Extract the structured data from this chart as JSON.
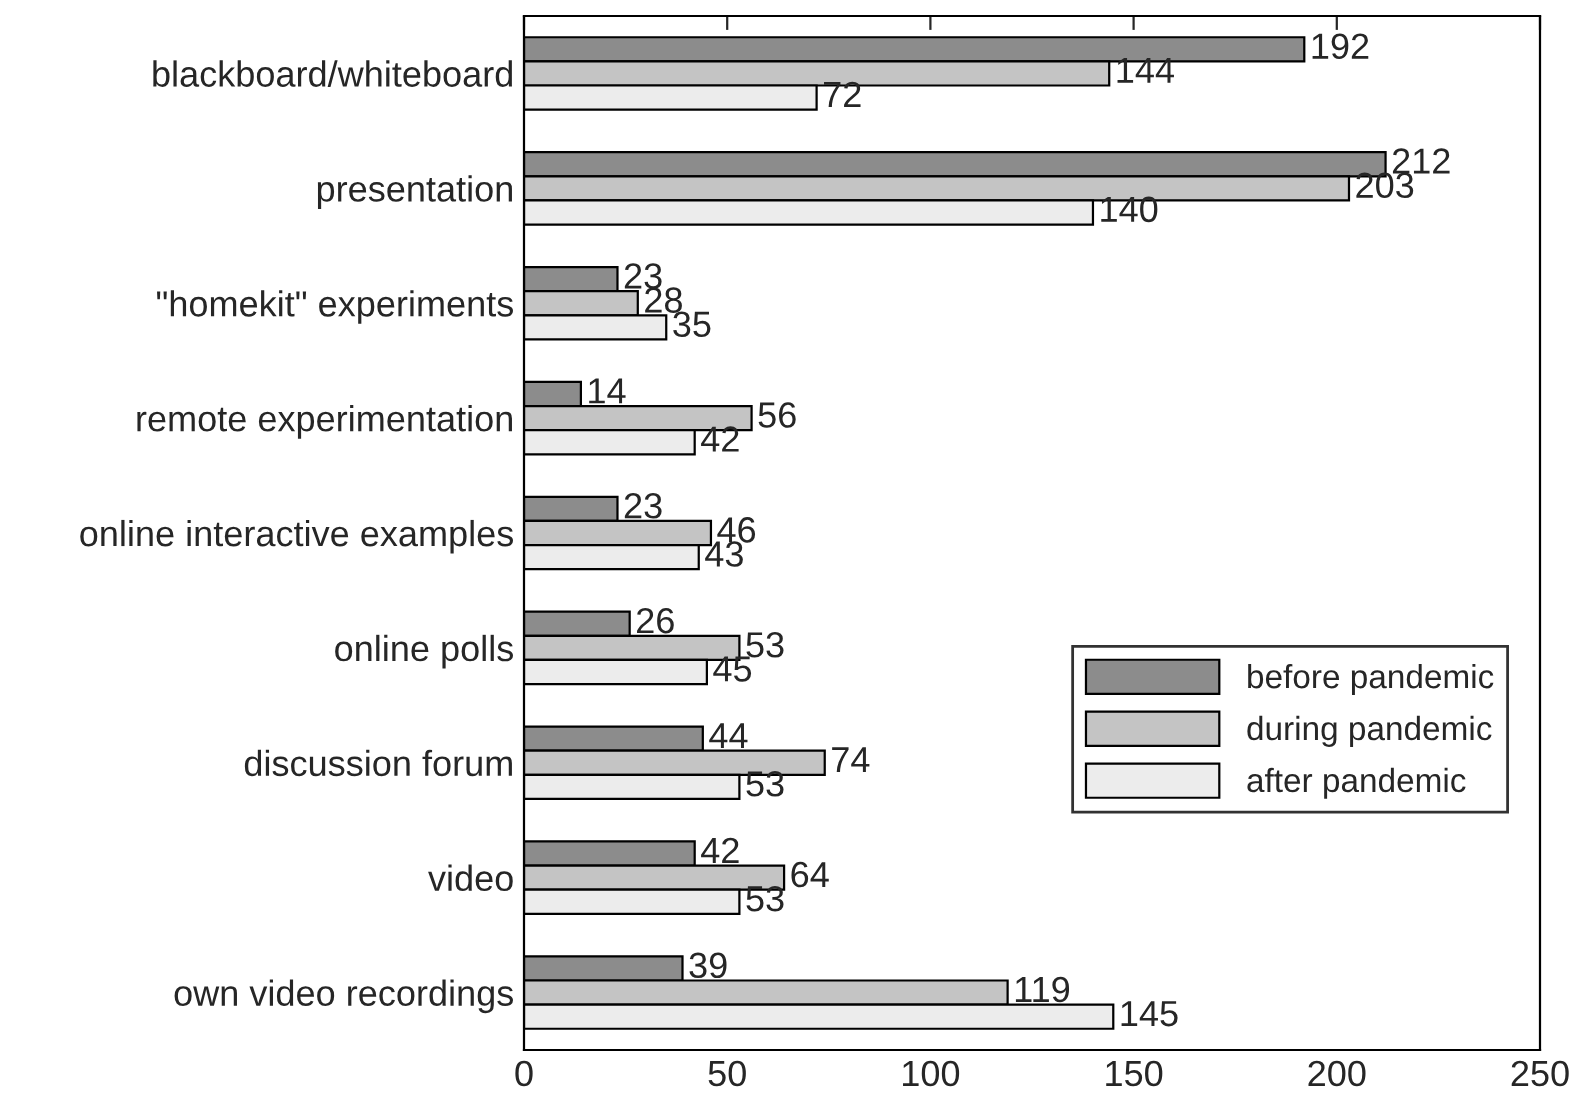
{
  "chart_data": {
    "type": "bar",
    "orientation": "horizontal",
    "categories": [
      "blackboard/whiteboard",
      "presentation",
      "\"homekit\" experiments",
      "remote experimentation",
      "online interactive examples",
      "online polls",
      "discussion forum",
      "video",
      "own video recordings"
    ],
    "series": [
      {
        "name": "before pandemic",
        "color": "#8c8c8c",
        "values": [
          192,
          212,
          23,
          14,
          23,
          26,
          44,
          42,
          39
        ]
      },
      {
        "name": "during pandemic",
        "color": "#c4c4c4",
        "values": [
          144,
          203,
          28,
          56,
          46,
          53,
          74,
          64,
          119
        ]
      },
      {
        "name": "after pandemic",
        "color": "#ececec",
        "values": [
          72,
          140,
          35,
          42,
          43,
          45,
          53,
          53,
          145
        ]
      }
    ],
    "xlim": [
      0,
      250
    ],
    "xticks": [
      0,
      50,
      100,
      150,
      200,
      250
    ],
    "data_labels": true,
    "legend": "right",
    "grid": false
  }
}
